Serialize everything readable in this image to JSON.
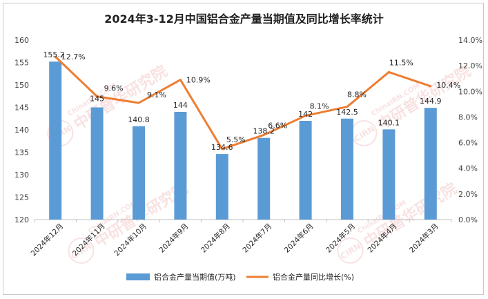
{
  "chart_data": {
    "type": "bar+line",
    "title": "2024年3-12月中国铝合金产量当期值及同比增长率统计",
    "categories": [
      "2024年12月",
      "2024年11月",
      "2024年10月",
      "2024年9月",
      "2024年8月",
      "2024年7月",
      "2024年6月",
      "2024年5月",
      "2024年4月",
      "2024年3月"
    ],
    "series": [
      {
        "name": "铝合金产量当期值(万吨)",
        "type": "bar",
        "axis": "left",
        "values": [
          155.2,
          145,
          140.8,
          144,
          134.6,
          138.2,
          142,
          142.5,
          140.1,
          144.9
        ],
        "labels": [
          "155.2",
          "145",
          "140.8",
          "144",
          "134.6",
          "138.2",
          "142",
          "142.5",
          "140.1",
          "144.9"
        ],
        "color": "#5B9BD5"
      },
      {
        "name": "铝合金产量同比增长(%)",
        "type": "line",
        "axis": "right",
        "values": [
          12.7,
          9.6,
          9.1,
          10.9,
          5.5,
          6.6,
          8.1,
          8.8,
          11.5,
          10.4
        ],
        "labels": [
          "12.7%",
          "9.6%",
          "9.1%",
          "10.9%",
          "5.5%",
          "6.6%",
          "8.1%",
          "8.8%",
          "11.5%",
          "10.4%"
        ],
        "color": "#ED7D31"
      }
    ],
    "y_left": {
      "min": 120,
      "max": 160,
      "step": 5
    },
    "y_right": {
      "min": 0,
      "max": 14,
      "step": 2,
      "tick_labels": [
        "0.0%",
        "2.0%",
        "4.0%",
        "6.0%",
        "8.0%",
        "10.0%",
        "12.0%",
        "14.0%"
      ]
    },
    "grid": false,
    "legend": "bottom-center"
  },
  "watermarks": [
    "ChinaIRN.COM",
    "中研普华研究院",
    "CIRN"
  ]
}
